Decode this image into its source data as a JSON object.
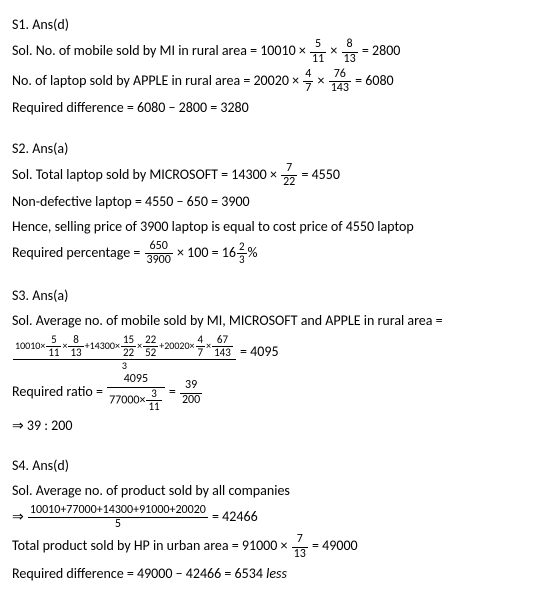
{
  "s1": {
    "header": "S1. Ans(d)",
    "line1_prefix": "Sol. No. of mobile sold by MI in rural area = 10010 ×",
    "f1_num": "5",
    "f1_den": "11",
    "times1": "×",
    "f2_num": "8",
    "f2_den": "13",
    "line1_suffix": "= 2800",
    "line2_prefix": "No. of laptop sold by APPLE in rural area = 20020 ×",
    "f3_num": "4",
    "f3_den": "7",
    "times2": "×",
    "f4_num": "76",
    "f4_den": "143",
    "line2_suffix": "= 6080",
    "line3": "Required difference =  6080 − 2800 = 3280"
  },
  "s2": {
    "header": "S2. Ans(a)",
    "line1_prefix": "Sol. Total laptop sold by MICROSOFT = 14300 ×",
    "f1_num": "7",
    "f1_den": "22",
    "line1_suffix": "= 4550",
    "line2": "Non-defective laptop = 4550 − 650 = 3900",
    "line3": "Hence, selling price of 3900 laptop is equal to cost price of 4550 laptop",
    "line4_prefix": "Required percentage =",
    "f2_num": "650",
    "f2_den": "3900",
    "line4_mid": "× 100 = 16",
    "f3_num": "2",
    "f3_den": "3",
    "line4_suffix": "%"
  },
  "s3": {
    "header": "S3. Ans(a)",
    "line1": "Sol. Average no. of mobile sold by MI, MICROSOFT and APPLE in rural area =",
    "big_frac_num": "10010×(5/11)×(8/13)+14300×(15/22)×(22/52)+20020×(4/7)×(67/143)",
    "big_frac_den": "3",
    "line2_suffix": "= 4095",
    "line3_prefix": "Required ratio =",
    "f1_num": "4095",
    "f1_den_prefix": "77000×",
    "f1_den_num": "3",
    "f1_den_den": "11",
    "eq": "=",
    "f2_num": "39",
    "f2_den": "200",
    "line4": "⇒ 39 : 200"
  },
  "s4": {
    "header": "S4. Ans(d)",
    "line1": "Sol. Average no. of product sold by all companies",
    "line2_prefix": "⇒",
    "f1_num": "10010+77000+14300+91000+20020",
    "f1_den": "5",
    "line2_suffix": "= 42466",
    "line3_prefix": "Total product sold by HP in urban area = 91000 ×",
    "f2_num": "7",
    "f2_den": "13",
    "line3_suffix": "= 49000",
    "line4_prefix": "Required difference = 49000 − 42466 = 6534 ",
    "line4_italic": "less"
  }
}
